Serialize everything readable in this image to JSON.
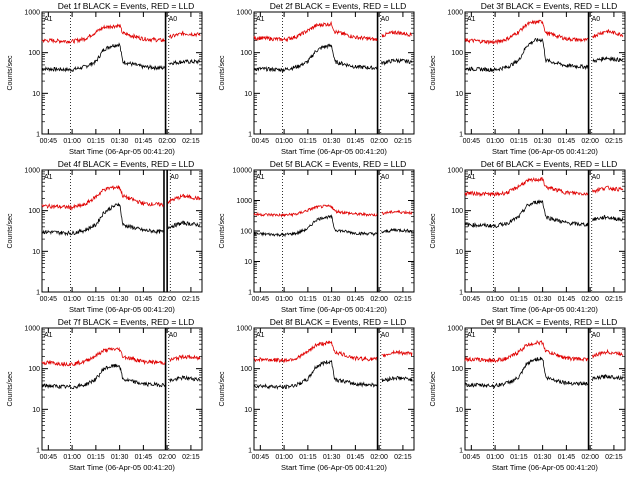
{
  "figure": {
    "panels": [
      {
        "id": "1f",
        "title": "Det 1f BLACK = Events, RED = LLD",
        "ylabel": "Counts/sec",
        "xlabel": "Start Time (06-Apr-05 00:41:20)"
      },
      {
        "id": "2f",
        "title": "Det 2f BLACK = Events, RED = LLD",
        "ylabel": "Counts/sec",
        "xlabel": "Start Time (06-Apr-05 00:41:20)"
      },
      {
        "id": "3f",
        "title": "Det 3f BLACK = Events, RED = LLD",
        "ylabel": "Counts/sec",
        "xlabel": "Start Time (06-Apr-05 00:41:20)"
      },
      {
        "id": "4f",
        "title": "Det 4f BLACK = Events, RED = LLD",
        "ylabel": "Counts/sec",
        "xlabel": "Start Time (06-Apr-05 00:41:20)"
      },
      {
        "id": "5f",
        "title": "Det 5f BLACK = Events, RED = LLD",
        "ylabel": "Counts/sec",
        "xlabel": "Start Time (06-Apr-05 00:41:20)"
      },
      {
        "id": "6f",
        "title": "Det 6f BLACK = Events, RED = LLD",
        "ylabel": "Counts/sec",
        "xlabel": "Start Time (06-Apr-05 00:41:20)"
      },
      {
        "id": "7f",
        "title": "Det 7f BLACK = Events, RED = LLD",
        "ylabel": "Counts/sec",
        "xlabel": "Start Time (06-Apr-05 00:41:20)"
      },
      {
        "id": "8f",
        "title": "Det 8f BLACK = Events, RED = LLD",
        "ylabel": "Counts/sec",
        "xlabel": "Start Time (06-Apr-05 00:41:20)"
      },
      {
        "id": "9f",
        "title": "Det 9f BLACK = Events, RED = LLD",
        "ylabel": "Counts/sec",
        "xlabel": "Start Time (06-Apr-05 00:41:20)"
      }
    ],
    "xticks": [
      "00:45",
      "01:00",
      "01:15",
      "01:30",
      "01:45",
      "02:00",
      "02:15"
    ],
    "yticks_main": [
      "1",
      "10",
      "100",
      "1000"
    ],
    "yticks_panel5": [
      "1",
      "10",
      "100",
      "1000",
      "10000"
    ],
    "attenuator_markers": [
      "A1",
      "A0"
    ],
    "colors": {
      "events": "#000000",
      "lld": "#e00000",
      "axes": "#000000"
    }
  },
  "chart_data": [
    {
      "type": "line",
      "title": "Det 1f BLACK = Events, RED = LLD",
      "xlabel": "Start Time (06-Apr-05 00:41:20)",
      "ylabel": "Counts/sec",
      "yscale": "log",
      "ylim": [
        1,
        1000
      ],
      "xlim": [
        "00:41",
        "02:22"
      ],
      "series": [
        {
          "name": "Events",
          "color": "#000000",
          "x": [
            "00:45",
            "01:00",
            "01:08",
            "01:15",
            "01:20",
            "01:25",
            "01:30",
            "01:32",
            "01:45",
            "01:58",
            "02:01",
            "02:10",
            "02:20"
          ],
          "values": [
            40,
            38,
            45,
            60,
            120,
            150,
            160,
            60,
            45,
            42,
            55,
            60,
            60
          ]
        },
        {
          "name": "LLD",
          "color": "#e00000",
          "x": [
            "00:45",
            "01:00",
            "01:08",
            "01:15",
            "01:20",
            "01:25",
            "01:30",
            "01:32",
            "01:45",
            "01:58",
            "02:01",
            "02:10",
            "02:20"
          ],
          "values": [
            200,
            190,
            220,
            320,
            420,
            450,
            460,
            300,
            220,
            200,
            240,
            300,
            280
          ]
        }
      ],
      "vertical_lines": [
        {
          "x": "00:59",
          "style": "dotted"
        },
        {
          "x": "01:59",
          "style": "solid"
        },
        {
          "x": "02:01",
          "style": "dotted"
        }
      ]
    },
    {
      "type": "line",
      "title": "Det 2f BLACK = Events, RED = LLD",
      "xlabel": "Start Time (06-Apr-05 00:41:20)",
      "ylabel": "Counts/sec",
      "yscale": "log",
      "ylim": [
        1,
        1000
      ],
      "xlim": [
        "00:41",
        "02:22"
      ],
      "series": [
        {
          "name": "Events",
          "color": "#000000",
          "x": [
            "00:45",
            "01:00",
            "01:08",
            "01:15",
            "01:20",
            "01:25",
            "01:30",
            "01:32",
            "01:45",
            "01:58",
            "02:01",
            "02:10",
            "02:20"
          ],
          "values": [
            40,
            38,
            45,
            60,
            110,
            140,
            150,
            60,
            45,
            42,
            55,
            65,
            60
          ]
        },
        {
          "name": "LLD",
          "color": "#e00000",
          "x": [
            "00:45",
            "01:00",
            "01:08",
            "01:15",
            "01:20",
            "01:25",
            "01:30",
            "01:32",
            "01:45",
            "01:58",
            "02:01",
            "02:10",
            "02:20"
          ],
          "values": [
            230,
            210,
            250,
            350,
            460,
            500,
            510,
            330,
            240,
            210,
            260,
            320,
            280
          ]
        }
      ],
      "vertical_lines": [
        {
          "x": "00:59",
          "style": "dotted"
        },
        {
          "x": "01:59",
          "style": "solid"
        },
        {
          "x": "02:01",
          "style": "dotted"
        }
      ]
    },
    {
      "type": "line",
      "title": "Det 3f BLACK = Events, RED = LLD",
      "xlabel": "Start Time (06-Apr-05 00:41:20)",
      "ylabel": "Counts/sec",
      "yscale": "log",
      "ylim": [
        1,
        1000
      ],
      "xlim": [
        "00:41",
        "02:22"
      ],
      "series": [
        {
          "name": "Events",
          "color": "#000000",
          "x": [
            "00:45",
            "01:00",
            "01:08",
            "01:15",
            "01:20",
            "01:25",
            "01:30",
            "01:32",
            "01:45",
            "01:58",
            "02:01",
            "02:10",
            "02:20"
          ],
          "values": [
            40,
            38,
            45,
            65,
            150,
            200,
            210,
            65,
            48,
            45,
            60,
            75,
            65
          ]
        },
        {
          "name": "LLD",
          "color": "#e00000",
          "x": [
            "00:45",
            "01:00",
            "01:08",
            "01:15",
            "01:20",
            "01:25",
            "01:30",
            "01:32",
            "01:45",
            "01:58",
            "02:01",
            "02:10",
            "02:20"
          ],
          "values": [
            200,
            180,
            220,
            330,
            500,
            560,
            580,
            310,
            220,
            200,
            250,
            340,
            280
          ]
        }
      ],
      "vertical_lines": [
        {
          "x": "00:59",
          "style": "dotted"
        },
        {
          "x": "01:59",
          "style": "solid"
        },
        {
          "x": "02:01",
          "style": "dotted"
        }
      ]
    },
    {
      "type": "line",
      "title": "Det 4f BLACK = Events, RED = LLD",
      "xlabel": "Start Time (06-Apr-05 00:41:20)",
      "ylabel": "Counts/sec",
      "yscale": "log",
      "ylim": [
        1,
        1000
      ],
      "xlim": [
        "00:41",
        "02:22"
      ],
      "series": [
        {
          "name": "Events",
          "color": "#000000",
          "x": [
            "00:45",
            "01:00",
            "01:08",
            "01:15",
            "01:20",
            "01:25",
            "01:30",
            "01:32",
            "01:45",
            "01:58",
            "02:01",
            "02:10",
            "02:20"
          ],
          "values": [
            30,
            28,
            33,
            45,
            90,
            120,
            150,
            45,
            33,
            30,
            40,
            50,
            45
          ]
        },
        {
          "name": "LLD",
          "color": "#e00000",
          "x": [
            "00:45",
            "01:00",
            "01:08",
            "01:15",
            "01:20",
            "01:25",
            "01:30",
            "01:32",
            "01:45",
            "01:58",
            "02:01",
            "02:10",
            "02:20"
          ],
          "values": [
            130,
            120,
            140,
            220,
            330,
            370,
            380,
            230,
            150,
            140,
            170,
            230,
            200
          ]
        }
      ],
      "vertical_lines": [
        {
          "x": "00:59",
          "style": "dotted"
        },
        {
          "x": "01:58",
          "style": "solid"
        },
        {
          "x": "02:00",
          "style": "solid"
        },
        {
          "x": "02:02",
          "style": "dotted"
        }
      ]
    },
    {
      "type": "line",
      "title": "Det 5f BLACK = Events, RED = LLD",
      "xlabel": "Start Time (06-Apr-05 00:41:20)",
      "ylabel": "Counts/sec",
      "yscale": "log",
      "ylim": [
        1,
        10000
      ],
      "xlim": [
        "00:41",
        "02:22"
      ],
      "series": [
        {
          "name": "Events",
          "color": "#000000",
          "x": [
            "00:45",
            "01:00",
            "01:08",
            "01:15",
            "01:20",
            "01:25",
            "01:30",
            "01:32",
            "01:45",
            "01:58",
            "02:01",
            "02:10",
            "02:20"
          ],
          "values": [
            80,
            75,
            85,
            120,
            230,
            280,
            290,
            110,
            85,
            80,
            90,
            110,
            100
          ]
        },
        {
          "name": "LLD",
          "color": "#e00000",
          "x": [
            "00:45",
            "01:00",
            "01:08",
            "01:15",
            "01:20",
            "01:25",
            "01:30",
            "01:32",
            "01:45",
            "01:58",
            "02:01",
            "02:10",
            "02:20"
          ],
          "values": [
            350,
            330,
            360,
            480,
            600,
            640,
            650,
            450,
            360,
            340,
            380,
            430,
            400
          ]
        }
      ],
      "vertical_lines": [
        {
          "x": "00:59",
          "style": "dotted"
        },
        {
          "x": "01:59",
          "style": "solid"
        },
        {
          "x": "02:01",
          "style": "dotted"
        }
      ]
    },
    {
      "type": "line",
      "title": "Det 6f BLACK = Events, RED = LLD",
      "xlabel": "Start Time (06-Apr-05 00:41:20)",
      "ylabel": "Counts/sec",
      "yscale": "log",
      "ylim": [
        1,
        1000
      ],
      "xlim": [
        "00:41",
        "02:22"
      ],
      "series": [
        {
          "name": "Events",
          "color": "#000000",
          "x": [
            "00:45",
            "01:00",
            "01:08",
            "01:15",
            "01:20",
            "01:25",
            "01:30",
            "01:32",
            "01:45",
            "01:58",
            "02:01",
            "02:10",
            "02:20"
          ],
          "values": [
            45,
            42,
            50,
            70,
            130,
            160,
            170,
            70,
            50,
            45,
            60,
            70,
            60
          ]
        },
        {
          "name": "LLD",
          "color": "#e00000",
          "x": [
            "00:45",
            "01:00",
            "01:08",
            "01:15",
            "01:20",
            "01:25",
            "01:30",
            "01:32",
            "01:45",
            "01:58",
            "02:01",
            "02:10",
            "02:20"
          ],
          "values": [
            270,
            250,
            280,
            400,
            530,
            580,
            590,
            380,
            280,
            260,
            300,
            370,
            330
          ]
        }
      ],
      "vertical_lines": [
        {
          "x": "00:59",
          "style": "dotted"
        },
        {
          "x": "01:59",
          "style": "solid"
        },
        {
          "x": "02:01",
          "style": "dotted"
        }
      ]
    },
    {
      "type": "line",
      "title": "Det 7f BLACK = Events, RED = LLD",
      "xlabel": "Start Time (06-Apr-05 00:41:20)",
      "ylabel": "Counts/sec",
      "yscale": "log",
      "ylim": [
        1,
        1000
      ],
      "xlim": [
        "00:41",
        "02:22"
      ],
      "series": [
        {
          "name": "Events",
          "color": "#000000",
          "x": [
            "00:45",
            "01:00",
            "01:08",
            "01:15",
            "01:20",
            "01:25",
            "01:30",
            "01:32",
            "01:45",
            "01:58",
            "02:01",
            "02:10",
            "02:20"
          ],
          "values": [
            38,
            35,
            40,
            55,
            100,
            115,
            120,
            55,
            42,
            40,
            50,
            60,
            55
          ]
        },
        {
          "name": "LLD",
          "color": "#e00000",
          "x": [
            "00:45",
            "01:00",
            "01:08",
            "01:15",
            "01:20",
            "01:25",
            "01:30",
            "01:32",
            "01:45",
            "01:58",
            "02:01",
            "02:10",
            "02:20"
          ],
          "values": [
            140,
            130,
            150,
            210,
            280,
            300,
            300,
            200,
            150,
            140,
            160,
            200,
            180
          ]
        }
      ],
      "vertical_lines": [
        {
          "x": "00:59",
          "style": "dotted"
        },
        {
          "x": "01:59",
          "style": "solid"
        },
        {
          "x": "02:01",
          "style": "dotted"
        }
      ]
    },
    {
      "type": "line",
      "title": "Det 8f BLACK = Events, RED = LLD",
      "xlabel": "Start Time (06-Apr-05 00:41:20)",
      "ylabel": "Counts/sec",
      "yscale": "log",
      "ylim": [
        1,
        1000
      ],
      "xlim": [
        "00:41",
        "02:22"
      ],
      "series": [
        {
          "name": "Events",
          "color": "#000000",
          "x": [
            "00:45",
            "01:00",
            "01:08",
            "01:15",
            "01:20",
            "01:25",
            "01:30",
            "01:32",
            "01:45",
            "01:58",
            "02:01",
            "02:10",
            "02:20"
          ],
          "values": [
            38,
            35,
            40,
            55,
            110,
            140,
            150,
            55,
            42,
            40,
            50,
            60,
            55
          ]
        },
        {
          "name": "LLD",
          "color": "#e00000",
          "x": [
            "00:45",
            "01:00",
            "01:08",
            "01:15",
            "01:20",
            "01:25",
            "01:30",
            "01:32",
            "01:45",
            "01:58",
            "02:01",
            "02:10",
            "02:20"
          ],
          "values": [
            170,
            160,
            180,
            260,
            380,
            420,
            430,
            260,
            180,
            170,
            200,
            260,
            230
          ]
        }
      ],
      "vertical_lines": [
        {
          "x": "00:59",
          "style": "dotted"
        },
        {
          "x": "01:59",
          "style": "solid"
        },
        {
          "x": "02:01",
          "style": "dotted"
        }
      ]
    },
    {
      "type": "line",
      "title": "Det 9f BLACK = Events, RED = LLD",
      "xlabel": "Start Time (06-Apr-05 00:41:20)",
      "ylabel": "Counts/sec",
      "yscale": "log",
      "ylim": [
        1,
        1000
      ],
      "xlim": [
        "00:41",
        "02:22"
      ],
      "series": [
        {
          "name": "Events",
          "color": "#000000",
          "x": [
            "00:45",
            "01:00",
            "01:08",
            "01:15",
            "01:20",
            "01:25",
            "01:30",
            "01:32",
            "01:45",
            "01:58",
            "02:01",
            "02:10",
            "02:20"
          ],
          "values": [
            40,
            38,
            45,
            60,
            130,
            170,
            180,
            60,
            45,
            42,
            55,
            65,
            60
          ]
        },
        {
          "name": "LLD",
          "color": "#e00000",
          "x": [
            "00:45",
            "01:00",
            "01:08",
            "01:15",
            "01:20",
            "01:25",
            "01:30",
            "01:32",
            "01:45",
            "01:58",
            "02:01",
            "02:10",
            "02:20"
          ],
          "values": [
            170,
            160,
            180,
            260,
            380,
            430,
            440,
            270,
            180,
            170,
            200,
            260,
            230
          ]
        }
      ],
      "vertical_lines": [
        {
          "x": "00:59",
          "style": "dotted"
        },
        {
          "x": "01:59",
          "style": "solid"
        },
        {
          "x": "02:01",
          "style": "dotted"
        }
      ]
    }
  ]
}
